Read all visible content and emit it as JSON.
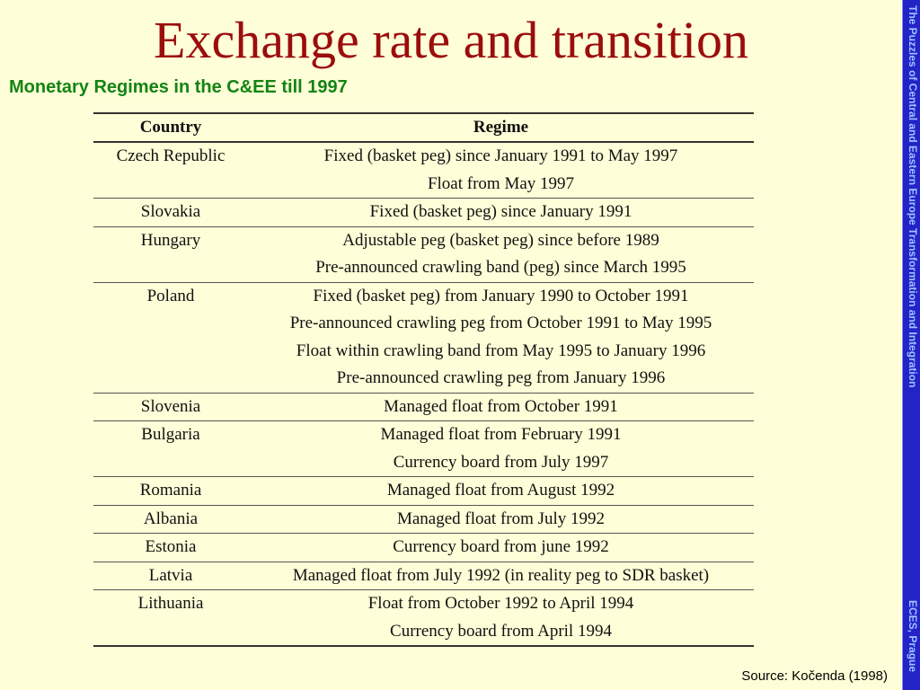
{
  "title": "Exchange rate and transition",
  "subtitle": "Monetary Regimes in the C&EE till 1997",
  "sidebar": {
    "top_text": "The Puzzles of Central and Eastern Europe Transformation and Integration",
    "bottom_text": "ECES, Prague"
  },
  "source": "Source: Kočenda (1998)",
  "table": {
    "headers": [
      "Country",
      "Regime"
    ],
    "rows": [
      {
        "country": "Czech Republic",
        "regimes": [
          "Fixed (basket peg) since January 1991 to May 1997",
          "Float from May 1997"
        ]
      },
      {
        "country": "Slovakia",
        "regimes": [
          "Fixed (basket peg) since January 1991"
        ]
      },
      {
        "country": "Hungary",
        "regimes": [
          "Adjustable peg (basket peg) since before 1989",
          "Pre-announced crawling band (peg) since March 1995"
        ]
      },
      {
        "country": "Poland",
        "regimes": [
          "Fixed (basket peg) from January 1990 to October 1991",
          "Pre-announced crawling peg from October 1991 to May 1995",
          "Float within crawling band from May 1995 to January 1996",
          "Pre-announced crawling peg from January 1996"
        ]
      },
      {
        "country": "Slovenia",
        "regimes": [
          "Managed float from October 1991"
        ]
      },
      {
        "country": "Bulgaria",
        "regimes": [
          "Managed float from February 1991",
          "Currency board from July 1997"
        ]
      },
      {
        "country": "Romania",
        "regimes": [
          "Managed float from August 1992"
        ]
      },
      {
        "country": "Albania",
        "regimes": [
          "Managed float from July 1992"
        ]
      },
      {
        "country": "Estonia",
        "regimes": [
          "Currency board from june 1992"
        ]
      },
      {
        "country": "Latvia",
        "regimes": [
          "Managed float from July 1992 (in reality peg to SDR basket)"
        ]
      },
      {
        "country": "Lithuania",
        "regimes": [
          "Float from October 1992 to April 1994",
          "Currency board from April 1994"
        ]
      }
    ]
  }
}
